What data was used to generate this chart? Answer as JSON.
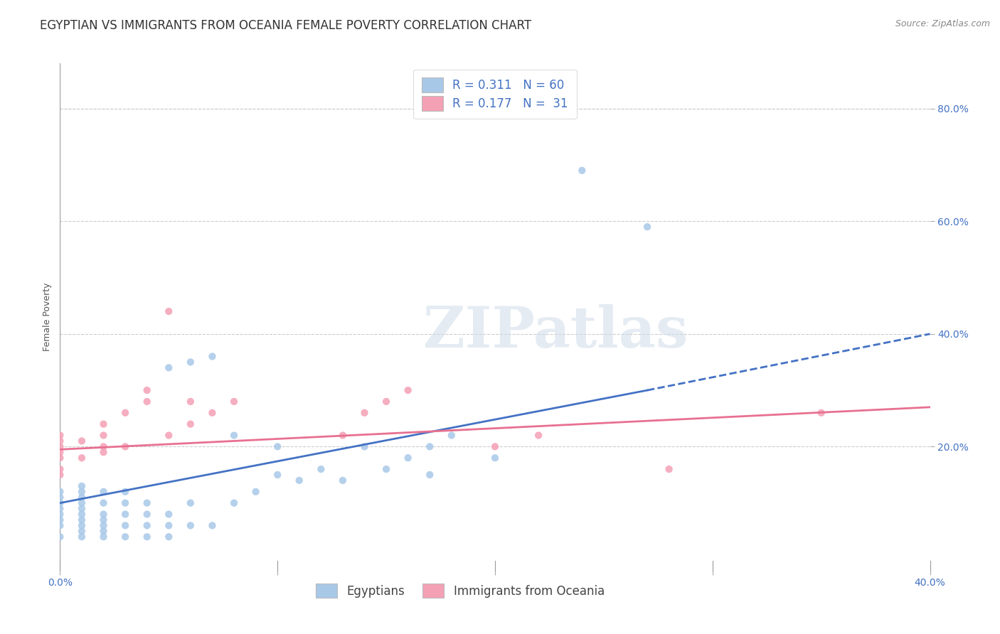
{
  "title": "EGYPTIAN VS IMMIGRANTS FROM OCEANIA FEMALE POVERTY CORRELATION CHART",
  "source": "Source: ZipAtlas.com",
  "ylabel": "Female Poverty",
  "right_ytick_labels": [
    "20.0%",
    "40.0%",
    "60.0%",
    "80.0%"
  ],
  "right_ytick_values": [
    0.2,
    0.4,
    0.6,
    0.8
  ],
  "xlim": [
    0.0,
    0.4
  ],
  "ylim": [
    -0.02,
    0.88
  ],
  "xtick_labels": [
    "0.0%",
    "",
    "",
    "",
    "40.0%"
  ],
  "xtick_values": [
    0.0,
    0.1,
    0.2,
    0.3,
    0.4
  ],
  "legend_r1": "R = 0.311",
  "legend_n1": "N = 60",
  "legend_r2": "R = 0.177",
  "legend_n2": "N = 31",
  "color_egyptian": "#a8c8e8",
  "color_oceania": "#f4a0b5",
  "color_trend_egyptian": "#4472c4",
  "color_trend_oceania": "#e87090",
  "color_blue_text": "#4472c4",
  "background_color": "#ffffff",
  "watermark_text": "ZIPatlas",
  "title_fontsize": 12,
  "axis_label_fontsize": 9,
  "tick_fontsize": 10,
  "egyptians_x": [
    0.0,
    0.0,
    0.0,
    0.0,
    0.0,
    0.0,
    0.0,
    0.0,
    0.01,
    0.01,
    0.01,
    0.01,
    0.01,
    0.01,
    0.01,
    0.01,
    0.01,
    0.01,
    0.02,
    0.02,
    0.02,
    0.02,
    0.02,
    0.02,
    0.02,
    0.03,
    0.03,
    0.03,
    0.03,
    0.03,
    0.04,
    0.04,
    0.04,
    0.04,
    0.05,
    0.05,
    0.05,
    0.05,
    0.06,
    0.06,
    0.06,
    0.07,
    0.07,
    0.08,
    0.08,
    0.09,
    0.1,
    0.1,
    0.11,
    0.12,
    0.13,
    0.14,
    0.15,
    0.16,
    0.17,
    0.17,
    0.18,
    0.2,
    0.24,
    0.27
  ],
  "egyptians_y": [
    0.04,
    0.06,
    0.07,
    0.08,
    0.09,
    0.1,
    0.11,
    0.12,
    0.04,
    0.05,
    0.06,
    0.07,
    0.08,
    0.09,
    0.1,
    0.11,
    0.12,
    0.13,
    0.04,
    0.05,
    0.06,
    0.07,
    0.08,
    0.1,
    0.12,
    0.04,
    0.06,
    0.08,
    0.1,
    0.12,
    0.04,
    0.06,
    0.08,
    0.1,
    0.04,
    0.06,
    0.08,
    0.34,
    0.06,
    0.1,
    0.35,
    0.06,
    0.36,
    0.1,
    0.22,
    0.12,
    0.15,
    0.2,
    0.14,
    0.16,
    0.14,
    0.2,
    0.16,
    0.18,
    0.15,
    0.2,
    0.22,
    0.18,
    0.69,
    0.59
  ],
  "oceania_x": [
    0.0,
    0.0,
    0.0,
    0.0,
    0.0,
    0.0,
    0.0,
    0.01,
    0.01,
    0.02,
    0.02,
    0.02,
    0.02,
    0.03,
    0.03,
    0.04,
    0.04,
    0.05,
    0.05,
    0.06,
    0.06,
    0.07,
    0.08,
    0.13,
    0.14,
    0.15,
    0.16,
    0.2,
    0.22,
    0.28,
    0.35
  ],
  "oceania_y": [
    0.15,
    0.16,
    0.18,
    0.19,
    0.2,
    0.21,
    0.22,
    0.18,
    0.21,
    0.19,
    0.2,
    0.22,
    0.24,
    0.2,
    0.26,
    0.28,
    0.3,
    0.22,
    0.44,
    0.24,
    0.28,
    0.26,
    0.28,
    0.22,
    0.26,
    0.28,
    0.3,
    0.2,
    0.22,
    0.16,
    0.26
  ],
  "grid_color": "#cccccc",
  "grid_linestyle": "--",
  "grid_linewidth": 0.8,
  "trend_eg_x0": 0.0,
  "trend_eg_y0": 0.1,
  "trend_eg_x1": 0.27,
  "trend_eg_y1": 0.3,
  "trend_eg_dashed_x0": 0.27,
  "trend_eg_dashed_y0": 0.3,
  "trend_eg_dashed_x1": 0.4,
  "trend_eg_dashed_y1": 0.4,
  "trend_oc_x0": 0.0,
  "trend_oc_y0": 0.195,
  "trend_oc_x1": 0.4,
  "trend_oc_y1": 0.27
}
